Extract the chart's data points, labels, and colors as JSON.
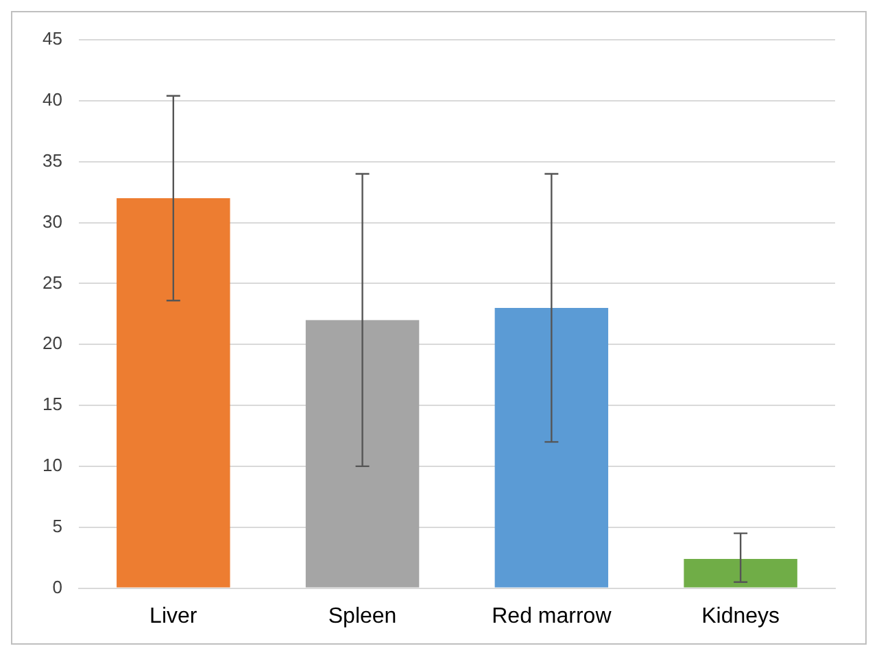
{
  "chart_data": {
    "type": "bar",
    "categories": [
      "Liver",
      "Spleen",
      "Red marrow",
      "Kidneys"
    ],
    "values": [
      32,
      22,
      23,
      2.4
    ],
    "colors": [
      "#ed7d31",
      "#a5a5a5",
      "#5b9bd5",
      "#70ad47"
    ],
    "errors": [
      8.4,
      12,
      11,
      [
        0.5,
        4.5
      ]
    ],
    "ylim": [
      0,
      45
    ],
    "yticks": [
      0,
      5,
      10,
      15,
      20,
      25,
      30,
      35,
      40,
      45
    ],
    "grid": "y",
    "legend": false
  }
}
